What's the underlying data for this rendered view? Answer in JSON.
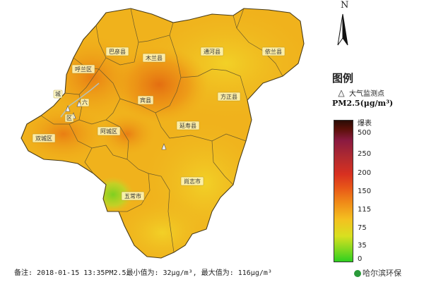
{
  "north_label": "N",
  "legend": {
    "title": "图例",
    "station_label": "大气监测点",
    "unit_label": "PM2.5(μg/m³)",
    "top_label": "爆表",
    "ticks": [
      "500",
      "250",
      "200",
      "150",
      "115",
      "75",
      "35",
      "0"
    ]
  },
  "regions": [
    {
      "id": "bayan",
      "label": "巴彦县"
    },
    {
      "id": "mulan",
      "label": "木兰县"
    },
    {
      "id": "tonghe",
      "label": "通河县"
    },
    {
      "id": "yilan",
      "label": "依兰县"
    },
    {
      "id": "hulan",
      "label": "呼兰区"
    },
    {
      "id": "bin",
      "label": "宾县"
    },
    {
      "id": "fangzheng",
      "label": "方正县"
    },
    {
      "id": "shuangcheng",
      "label": "双城区"
    },
    {
      "id": "acheng",
      "label": "阿城区"
    },
    {
      "id": "yanshou",
      "label": "延寿县"
    },
    {
      "id": "shangzhi",
      "label": "尚志市"
    },
    {
      "id": "wuchang",
      "label": "五常市"
    },
    {
      "id": "cheng",
      "label": "城"
    },
    {
      "id": "liu",
      "label": "六"
    },
    {
      "id": "qu",
      "label": "区"
    }
  ],
  "colors": {
    "low": "#7fd020",
    "mid": "#f0c020",
    "high": "#e88010",
    "peak": "#e06010"
  },
  "footer": "备注: 2018-01-15 13:35PM2.5最小值为: 32μg/m³, 最大值为: 116μg/m³",
  "watermark": "哈尔滨环保"
}
